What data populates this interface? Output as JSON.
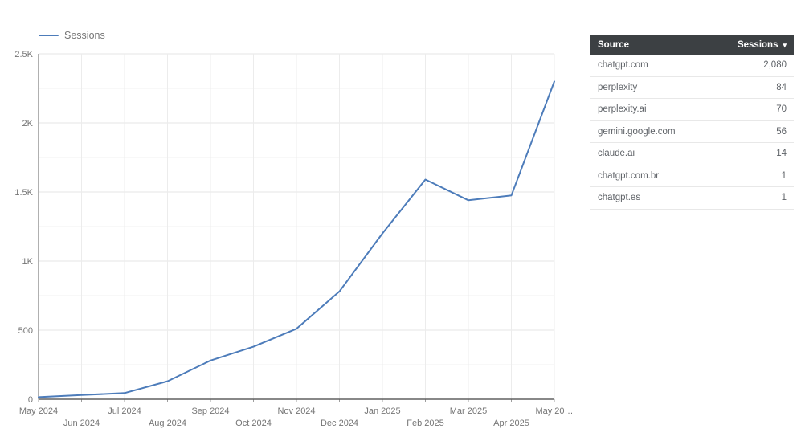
{
  "legend": {
    "label": "Sessions"
  },
  "colors": {
    "accent_line": "#4d7cba",
    "table_header_bg": "#3c4043",
    "table_header_fg": "#ffffff",
    "table_row_fg": "#5f6368",
    "axis_label": "#757575"
  },
  "chart_data": {
    "type": "line",
    "title": "",
    "legend_entries": [
      "Sessions"
    ],
    "legend_position": "top-left",
    "grid": true,
    "x": [
      "May 2024",
      "Jun 2024",
      "Jul 2024",
      "Aug 2024",
      "Sep 2024",
      "Oct 2024",
      "Nov 2024",
      "Dec 2024",
      "Jan 2025",
      "Feb 2025",
      "Mar 2025",
      "Apr 2025",
      "May 2025"
    ],
    "xtick_display": [
      "May 2024",
      "Jun 2024",
      "Jul 2024",
      "Aug 2024",
      "Sep 2024",
      "Oct 2024",
      "Nov 2024",
      "Dec 2024",
      "Jan 2025",
      "Feb 2025",
      "Mar 2025",
      "Apr 2025",
      "May 20…"
    ],
    "series": [
      {
        "name": "Sessions",
        "color": "#4d7cba",
        "values": [
          15,
          30,
          45,
          130,
          280,
          380,
          510,
          780,
          1200,
          1590,
          1440,
          1475,
          2300
        ]
      }
    ],
    "xlabel": "",
    "ylabel": "",
    "ylim": [
      0,
      2500
    ],
    "ytick_values": [
      0,
      500,
      1000,
      1500,
      2000,
      2500
    ],
    "ytick_labels": [
      "0",
      "500",
      "1K",
      "1.5K",
      "2K",
      "2.5K"
    ],
    "ytick_minor_values": [
      250,
      750,
      1250,
      1750,
      2250
    ]
  },
  "table": {
    "columns": [
      "Source",
      "Sessions"
    ],
    "sort_icon": "▾",
    "rows": [
      {
        "source": "chatgpt.com",
        "sessions": "2,080"
      },
      {
        "source": "perplexity",
        "sessions": "84"
      },
      {
        "source": "perplexity.ai",
        "sessions": "70"
      },
      {
        "source": "gemini.google.com",
        "sessions": "56"
      },
      {
        "source": "claude.ai",
        "sessions": "14"
      },
      {
        "source": "chatgpt.com.br",
        "sessions": "1"
      },
      {
        "source": "chatgpt.es",
        "sessions": "1"
      }
    ]
  }
}
